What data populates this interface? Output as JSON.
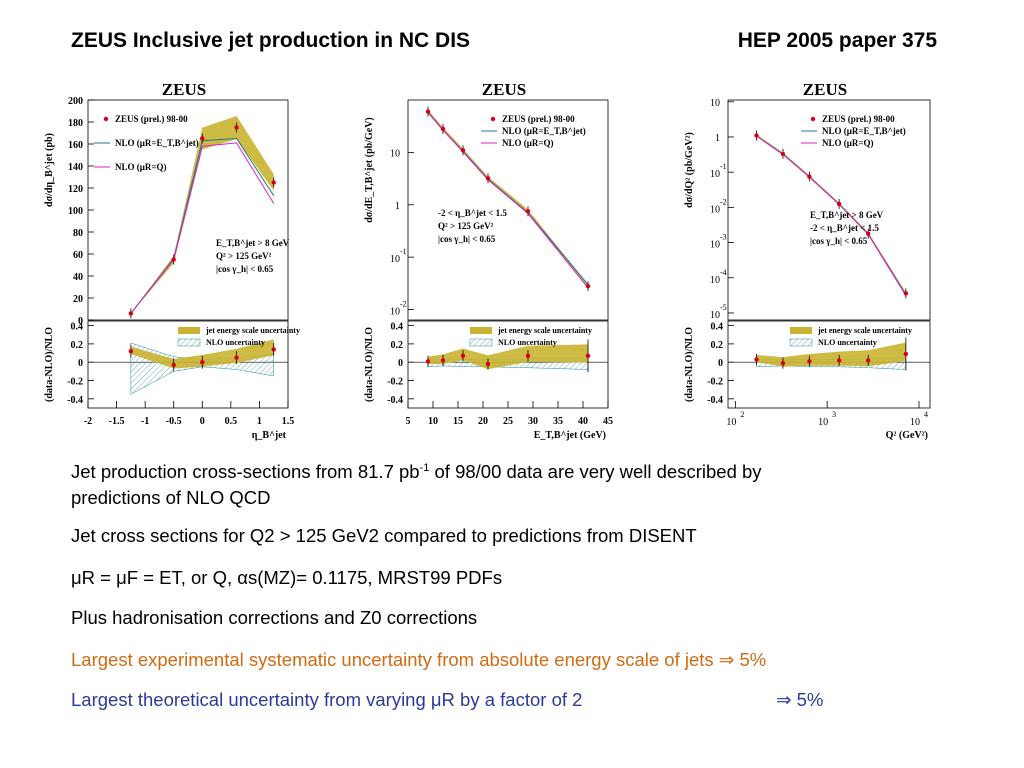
{
  "header": {
    "left": "ZEUS Inclusive jet production in NC DIS",
    "right": "HEP 2005 paper 375"
  },
  "bullets": {
    "b1_pre": " Jet production cross-sections from 81.7 pb",
    "b1_sup": "-1",
    "b1_post": " of 98/00 data are very well described by",
    "b1_line2": "predictions of NLO QCD",
    "b2": "Jet cross sections for Q2 > 125 GeV2 compared to predictions from DISENT",
    "b3": "μR = μF = ET, or Q, αs(MZ)= 0.1175, MRST99 PDFs",
    "b4": "Plus hadronisation corrections and Z0 corrections",
    "b5": "Largest experimental systematic uncertainty from absolute energy scale of jets ⇒ 5%",
    "b6_text": "Largest theoretical uncertainty  from varying μR by a factor of 2",
    "b6_arrow": "⇒ 5%"
  },
  "colors": {
    "b5": "#d06b12",
    "b6": "#2b3a9a",
    "data": "#d4001a",
    "nlo_et": "#1a7a8a",
    "nlo_q": "#e020c8",
    "jes": "#c8b430"
  },
  "chart_data": [
    {
      "type": "line",
      "title": "ZEUS",
      "ylabel": "dσ/dη_B^jet (pb)",
      "xlabel": "η_B^jet",
      "ylim": [
        0,
        200
      ],
      "xlim": [
        -2,
        1.5
      ],
      "yticks": [
        "0",
        "20",
        "40",
        "60",
        "80",
        "100",
        "120",
        "140",
        "160",
        "180",
        "200"
      ],
      "xticks": [
        "-2",
        "-1.5",
        "-1",
        "-0.5",
        "0",
        "0.5",
        "1",
        "1.5"
      ],
      "legend": [
        "ZEUS (prel.) 98-00",
        "NLO (μR=E_T,B^jet)",
        "NLO (μR=Q)"
      ],
      "annotation": [
        "E_T,B^jet > 8 GeV",
        "Q² > 125 GeV²",
        "|cos γ_h| < 0.65"
      ],
      "x": [
        -1.25,
        -0.5,
        0,
        0.6,
        1.25
      ],
      "data": [
        6,
        55,
        165,
        175,
        125
      ],
      "nlo_et": [
        6,
        56,
        163,
        165,
        113
      ],
      "nlo_q": [
        6,
        55,
        158,
        161,
        106
      ],
      "ratio": {
        "ylabel": "(data-NLO)/NLO",
        "ylim": [
          -0.5,
          0.45
        ],
        "yticks": [
          "0.4",
          "0.2",
          "0",
          "-0.2",
          "-0.4"
        ],
        "legend": [
          "jet energy scale uncertainty",
          "NLO uncertainty"
        ],
        "values": [
          0.12,
          -0.03,
          0.0,
          0.05,
          0.14
        ]
      }
    },
    {
      "type": "line",
      "title": "ZEUS",
      "ylabel": "dσ/dE_T,B^jet (pb/GeV)",
      "xlabel": "E_T,B^jet (GeV)",
      "yscale": "log",
      "xlim": [
        5,
        45
      ],
      "yticks": [
        "10^-2",
        "10^-1",
        "1",
        "10"
      ],
      "xticks": [
        "5",
        "10",
        "15",
        "20",
        "25",
        "30",
        "35",
        "40",
        "45"
      ],
      "legend": [
        "ZEUS (prel.) 98-00",
        "NLO (μR=E_T,B^jet)",
        "NLO (μR=Q)"
      ],
      "annotation": [
        "-2 < η_B^jet < 1.5",
        "Q² > 125 GeV²",
        "|cos γ_h| < 0.65"
      ],
      "x": [
        9,
        12,
        16,
        21,
        29,
        41
      ],
      "data": [
        60,
        28,
        11,
        3.2,
        0.75,
        0.028
      ],
      "nlo_et": [
        59,
        27,
        10.5,
        3.1,
        0.7,
        0.03
      ],
      "nlo_q": [
        58,
        26.5,
        10.2,
        3.0,
        0.68,
        0.026
      ],
      "ratio": {
        "ylabel": "(data-NLO)/NLO",
        "ylim": [
          -0.5,
          0.45
        ],
        "yticks": [
          "0.4",
          "0.2",
          "0",
          "-0.2",
          "-0.4"
        ],
        "legend": [
          "jet energy scale uncertainty",
          "NLO uncertainty"
        ],
        "values": [
          0.01,
          0.02,
          0.07,
          -0.02,
          0.07,
          0.07
        ]
      }
    },
    {
      "type": "line",
      "title": "ZEUS",
      "ylabel": "dσ/dQ² (pb/GeV²)",
      "xlabel": "Q² (GeV²)",
      "yscale": "log",
      "xscale": "log",
      "yticks": [
        "10^-5",
        "10^-4",
        "10^-3",
        "10^-2",
        "10^-1",
        "1",
        "10"
      ],
      "xticks": [
        "10^2",
        "10^3",
        "10^4"
      ],
      "legend": [
        "ZEUS (prel.) 98-00",
        "NLO (μR=E_T,B^jet)",
        "NLO (μR=Q)"
      ],
      "annotation": [
        "E_T,B^jet > 8 GeV",
        "-2 < η_B^jet < 1.5",
        "|cos γ_h| < 0.65"
      ],
      "x": [
        170,
        330,
        640,
        1350,
        2800,
        7200
      ],
      "data": [
        1.1,
        0.33,
        0.075,
        0.0125,
        0.0018,
        3.6e-05
      ],
      "nlo_et": [
        1.08,
        0.33,
        0.074,
        0.0124,
        0.00175,
        3.3e-05
      ],
      "nlo_q": [
        1.06,
        0.32,
        0.073,
        0.0122,
        0.0017,
        3.1e-05
      ],
      "ratio": {
        "ylabel": "(data-NLO)/NLO",
        "ylim": [
          -0.5,
          0.45
        ],
        "yticks": [
          "0.4",
          "0.2",
          "0",
          "-0.2",
          "-0.4"
        ],
        "legend": [
          "jet energy scale uncertainty",
          "NLO uncertainty"
        ],
        "values": [
          0.03,
          -0.01,
          0.01,
          0.02,
          0.02,
          0.09
        ]
      }
    }
  ]
}
